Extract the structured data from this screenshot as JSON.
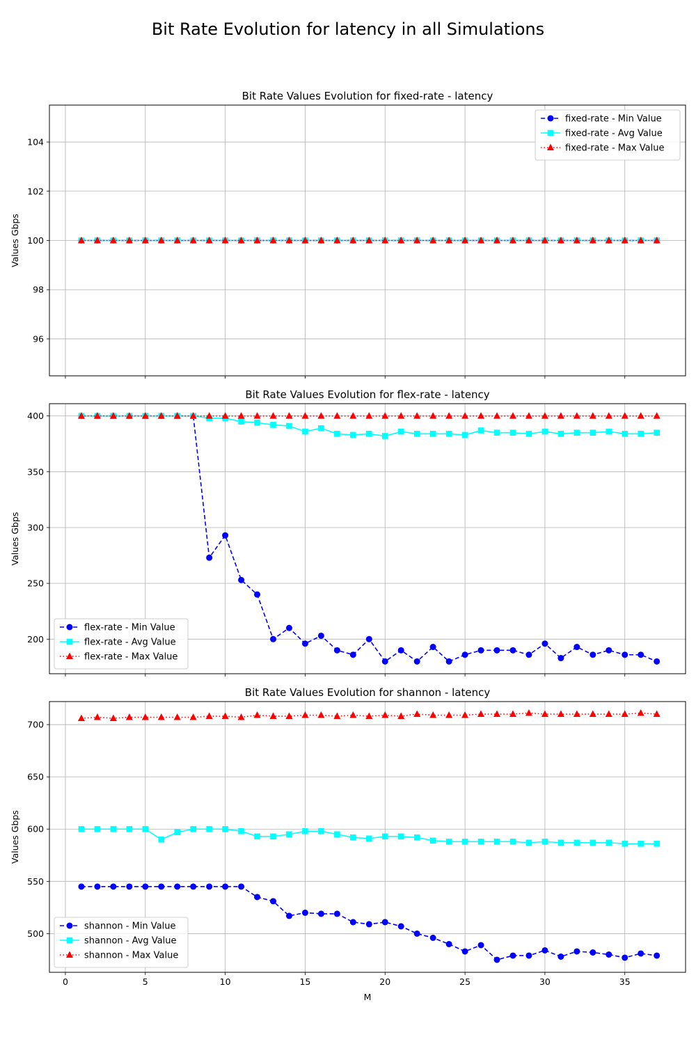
{
  "figure": {
    "title": "Bit Rate Evolution for latency in all Simulations",
    "xlabel": "M"
  },
  "colors": {
    "min": "#0000ff",
    "avg": "#00ffff",
    "max": "#ff0000",
    "grid": "#b0b0b0"
  },
  "chart_data": [
    {
      "type": "line",
      "title": "Bit Rate Values Evolution for fixed-rate - latency",
      "xlabel": "",
      "ylabel": "Values Gbps",
      "xlim": [
        -1,
        38.8
      ],
      "ylim": [
        94.5,
        105.5
      ],
      "xticks": [
        0,
        5,
        10,
        15,
        20,
        25,
        30,
        35
      ],
      "yticks": [
        96,
        98,
        100,
        102,
        104
      ],
      "show_xtick_labels": false,
      "grid": true,
      "legend": "top-right",
      "x": [
        1,
        2,
        3,
        4,
        5,
        6,
        7,
        8,
        9,
        10,
        11,
        12,
        13,
        14,
        15,
        16,
        17,
        18,
        19,
        20,
        21,
        22,
        23,
        24,
        25,
        26,
        27,
        28,
        29,
        30,
        31,
        32,
        33,
        34,
        35,
        36,
        37
      ],
      "series": [
        {
          "name": "fixed-rate - Min Value",
          "style": "min",
          "values": [
            100,
            100,
            100,
            100,
            100,
            100,
            100,
            100,
            100,
            100,
            100,
            100,
            100,
            100,
            100,
            100,
            100,
            100,
            100,
            100,
            100,
            100,
            100,
            100,
            100,
            100,
            100,
            100,
            100,
            100,
            100,
            100,
            100,
            100,
            100,
            100,
            100
          ]
        },
        {
          "name": "fixed-rate - Avg Value",
          "style": "avg",
          "values": [
            100,
            100,
            100,
            100,
            100,
            100,
            100,
            100,
            100,
            100,
            100,
            100,
            100,
            100,
            100,
            100,
            100,
            100,
            100,
            100,
            100,
            100,
            100,
            100,
            100,
            100,
            100,
            100,
            100,
            100,
            100,
            100,
            100,
            100,
            100,
            100,
            100
          ]
        },
        {
          "name": "fixed-rate - Max Value",
          "style": "max",
          "values": [
            100,
            100,
            100,
            100,
            100,
            100,
            100,
            100,
            100,
            100,
            100,
            100,
            100,
            100,
            100,
            100,
            100,
            100,
            100,
            100,
            100,
            100,
            100,
            100,
            100,
            100,
            100,
            100,
            100,
            100,
            100,
            100,
            100,
            100,
            100,
            100,
            100
          ]
        }
      ]
    },
    {
      "type": "line",
      "title": "Bit Rate Values Evolution for flex-rate - latency",
      "xlabel": "",
      "ylabel": "Values Gbps",
      "xlim": [
        -1,
        38.8
      ],
      "ylim": [
        169,
        411
      ],
      "xticks": [
        0,
        5,
        10,
        15,
        20,
        25,
        30,
        35
      ],
      "yticks": [
        200,
        250,
        300,
        350,
        400
      ],
      "show_xtick_labels": false,
      "grid": true,
      "legend": "bottom-left",
      "x": [
        1,
        2,
        3,
        4,
        5,
        6,
        7,
        8,
        9,
        10,
        11,
        12,
        13,
        14,
        15,
        16,
        17,
        18,
        19,
        20,
        21,
        22,
        23,
        24,
        25,
        26,
        27,
        28,
        29,
        30,
        31,
        32,
        33,
        34,
        35,
        36,
        37
      ],
      "series": [
        {
          "name": "flex-rate - Min Value",
          "style": "min",
          "values": [
            400,
            400,
            400,
            400,
            400,
            400,
            400,
            400,
            273,
            293,
            253,
            240,
            200,
            210,
            196,
            203,
            190,
            186,
            200,
            180,
            190,
            180,
            193,
            180,
            186,
            190,
            190,
            190,
            186,
            196,
            183,
            193,
            186,
            190,
            186,
            186,
            180
          ]
        },
        {
          "name": "flex-rate - Avg Value",
          "style": "avg",
          "values": [
            400,
            400,
            400,
            400,
            400,
            400,
            400,
            400,
            398,
            398,
            395,
            394,
            392,
            391,
            386,
            389,
            384,
            383,
            384,
            382,
            386,
            384,
            384,
            384,
            383,
            387,
            385,
            385,
            384,
            386,
            384,
            385,
            385,
            386,
            384,
            384,
            385
          ]
        },
        {
          "name": "flex-rate - Max Value",
          "style": "max",
          "values": [
            400,
            400,
            400,
            400,
            400,
            400,
            400,
            400,
            400,
            400,
            400,
            400,
            400,
            400,
            400,
            400,
            400,
            400,
            400,
            400,
            400,
            400,
            400,
            400,
            400,
            400,
            400,
            400,
            400,
            400,
            400,
            400,
            400,
            400,
            400,
            400,
            400
          ]
        }
      ]
    },
    {
      "type": "line",
      "title": "Bit Rate Values Evolution for shannon - latency",
      "xlabel": "M",
      "ylabel": "Values Gbps",
      "xlim": [
        -1,
        38.8
      ],
      "ylim": [
        463,
        722
      ],
      "xticks": [
        0,
        5,
        10,
        15,
        20,
        25,
        30,
        35
      ],
      "yticks": [
        500,
        550,
        600,
        650,
        700
      ],
      "show_xtick_labels": true,
      "grid": true,
      "legend": "bottom-left",
      "x": [
        1,
        2,
        3,
        4,
        5,
        6,
        7,
        8,
        9,
        10,
        11,
        12,
        13,
        14,
        15,
        16,
        17,
        18,
        19,
        20,
        21,
        22,
        23,
        24,
        25,
        26,
        27,
        28,
        29,
        30,
        31,
        32,
        33,
        34,
        35,
        36,
        37
      ],
      "series": [
        {
          "name": "shannon - Min Value",
          "style": "min",
          "values": [
            545,
            545,
            545,
            545,
            545,
            545,
            545,
            545,
            545,
            545,
            545,
            535,
            531,
            517,
            520,
            519,
            519,
            511,
            509,
            511,
            507,
            500,
            496,
            490,
            483,
            489,
            475,
            479,
            479,
            484,
            478,
            483,
            482,
            480,
            477,
            481,
            479
          ]
        },
        {
          "name": "shannon - Avg Value",
          "style": "avg",
          "values": [
            600,
            600,
            600,
            600,
            600,
            590,
            597,
            600,
            600,
            600,
            598,
            593,
            593,
            595,
            598,
            598,
            595,
            592,
            591,
            593,
            593,
            592,
            589,
            588,
            588,
            588,
            588,
            588,
            587,
            588,
            587,
            587,
            587,
            587,
            586,
            586,
            586
          ]
        },
        {
          "name": "shannon - Max Value",
          "style": "max",
          "values": [
            706,
            707,
            706,
            707,
            707,
            707,
            707,
            707,
            708,
            708,
            707,
            709,
            708,
            708,
            709,
            709,
            708,
            709,
            708,
            709,
            708,
            710,
            709,
            709,
            709,
            710,
            710,
            710,
            711,
            710,
            710,
            710,
            710,
            710,
            710,
            711,
            710
          ]
        }
      ]
    }
  ]
}
